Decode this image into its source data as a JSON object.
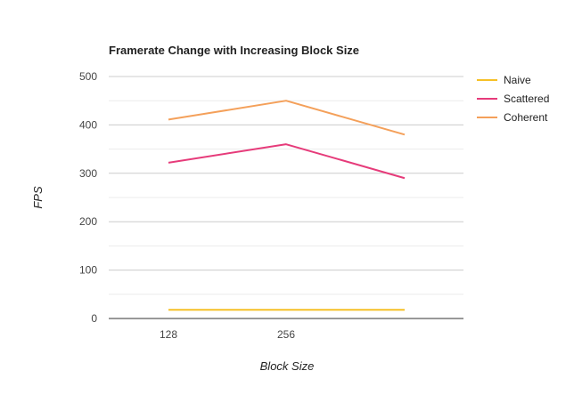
{
  "chart_data": {
    "type": "line",
    "title": "Framerate Change with Increasing Block Size",
    "xlabel": "Block Size",
    "ylabel": "FPS",
    "categories": [
      "128",
      "256",
      ""
    ],
    "ylim": [
      0,
      500
    ],
    "yticks": [
      0,
      100,
      200,
      300,
      400,
      500
    ],
    "grid": true,
    "legend_position": "right",
    "series": [
      {
        "name": "Naive",
        "color": "#f6c026",
        "values": [
          18,
          18,
          18
        ]
      },
      {
        "name": "Scattered",
        "color": "#e63b7a",
        "values": [
          322,
          360,
          290
        ]
      },
      {
        "name": "Coherent",
        "color": "#f4a05a",
        "values": [
          411,
          450,
          380
        ]
      }
    ]
  }
}
